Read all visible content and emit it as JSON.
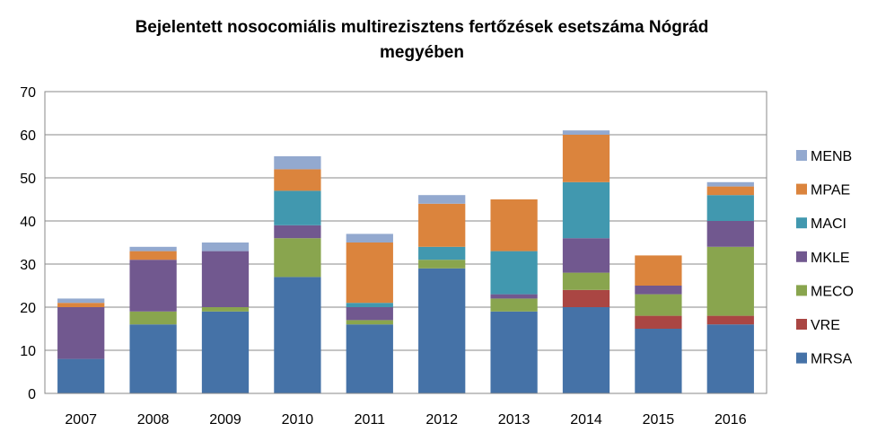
{
  "chart_data": {
    "type": "bar",
    "stacked": true,
    "title_line1": "Bejelentett nosocomiális  multirezisztens fertőzések esetszáma Nógrád",
    "title_line2": "megyében",
    "categories": [
      "2007",
      "2008",
      "2009",
      "2010",
      "2011",
      "2012",
      "2013",
      "2014",
      "2015",
      "2016"
    ],
    "yticks": [
      "0",
      "10",
      "20",
      "30",
      "40",
      "50",
      "60",
      "70"
    ],
    "ylim": [
      0,
      70
    ],
    "grid": true,
    "legend_position": "right",
    "series": [
      {
        "name": "MRSA",
        "color": "#4572A7",
        "values": [
          8,
          16,
          19,
          27,
          16,
          29,
          19,
          20,
          15,
          16
        ]
      },
      {
        "name": "VRE",
        "color": "#AA4643",
        "values": [
          0,
          0,
          0,
          0,
          0,
          0,
          0,
          4,
          3,
          2
        ]
      },
      {
        "name": "MECO",
        "color": "#89A54E",
        "values": [
          0,
          3,
          1,
          9,
          1,
          2,
          3,
          4,
          5,
          16
        ]
      },
      {
        "name": "MKLE",
        "color": "#71588F",
        "values": [
          12,
          12,
          13,
          3,
          3,
          0,
          1,
          8,
          2,
          6
        ]
      },
      {
        "name": "MACI",
        "color": "#4198AF",
        "values": [
          0,
          0,
          0,
          8,
          1,
          3,
          10,
          13,
          0,
          6
        ]
      },
      {
        "name": "MPAE",
        "color": "#DB843D",
        "values": [
          1,
          2,
          0,
          5,
          14,
          10,
          12,
          11,
          7,
          2
        ]
      },
      {
        "name": "MENB",
        "color": "#93A9CF",
        "values": [
          1,
          1,
          2,
          3,
          2,
          2,
          0,
          1,
          0,
          1
        ]
      }
    ],
    "legend_order": [
      "MENB",
      "MPAE",
      "MACI",
      "MKLE",
      "MECO",
      "VRE",
      "MRSA"
    ]
  }
}
